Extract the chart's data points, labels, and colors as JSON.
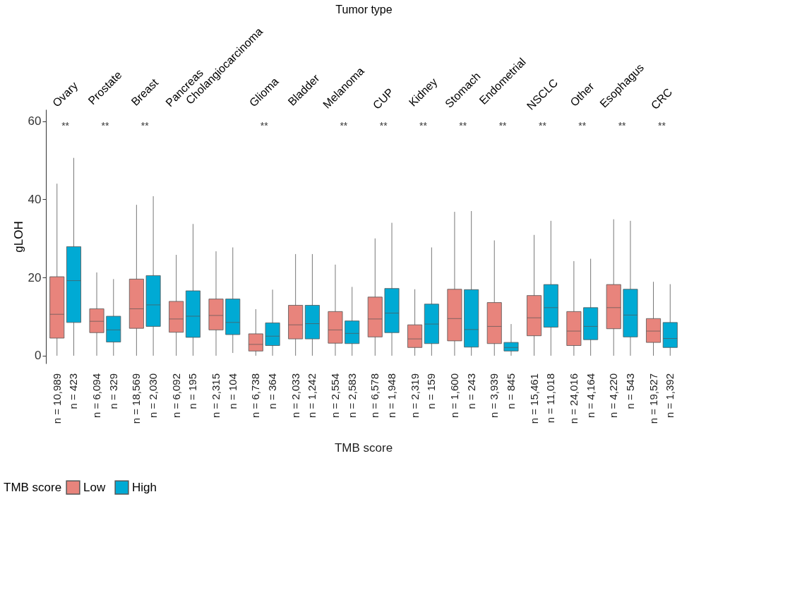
{
  "chart_data": {
    "type": "box",
    "x2label": "Tumor type",
    "ylabel": "gLOH",
    "legend_title": "TMB score",
    "legend": "bottom left",
    "grid": false,
    "categories": [
      "Ovary",
      "Prostate",
      "Breast",
      "Pancreas",
      "Cholangiocarcinoma",
      "Glioma",
      "Bladder",
      "Melanoma",
      "CUP",
      "Kidney",
      "Stomach",
      "Endometrial",
      "NSCLC",
      "Other",
      "Esophagus",
      "CRC"
    ],
    "ylim": [
      -2,
      63
    ],
    "yticks": [
      0,
      20,
      40,
      60
    ],
    "series": [
      {
        "name": "Low",
        "color": "#e8847c",
        "value_labels": [
          "n = 10,989",
          "n = 6,094",
          "n = 18,569",
          "n = 6,092",
          "n = 2,315",
          "n = 6,738",
          "n = 2,033",
          "n = 2,554",
          "n = 6,578",
          "n = 2,319",
          "n = 1,600",
          "n = 3,939",
          "n = 15,461",
          "n = 24,016",
          "n = 4,220",
          "n = 19,527"
        ],
        "boxes": [
          {
            "low": 0,
            "q1": 4.5,
            "median": 10.6,
            "q3": 20.2,
            "high": 44
          },
          {
            "low": 0,
            "q1": 5.9,
            "median": 8.8,
            "q3": 12.0,
            "high": 21.3
          },
          {
            "low": 0,
            "q1": 7.0,
            "median": 12.0,
            "q3": 19.6,
            "high": 38.6
          },
          {
            "low": 0,
            "q1": 6.0,
            "median": 9.4,
            "q3": 13.9,
            "high": 25.8
          },
          {
            "low": 0,
            "q1": 6.6,
            "median": 10.3,
            "q3": 14.5,
            "high": 26.7
          },
          {
            "low": 0,
            "q1": 1.2,
            "median": 2.9,
            "q3": 5.6,
            "high": 11.9
          },
          {
            "low": 0,
            "q1": 4.3,
            "median": 7.9,
            "q3": 12.9,
            "high": 26
          },
          {
            "low": 0,
            "q1": 3.2,
            "median": 6.6,
            "q3": 11.3,
            "high": 23.3
          },
          {
            "low": 0,
            "q1": 4.8,
            "median": 9.4,
            "q3": 15.0,
            "high": 30
          },
          {
            "low": 0,
            "q1": 2.1,
            "median": 4.3,
            "q3": 7.9,
            "high": 17.0
          },
          {
            "low": 0,
            "q1": 3.8,
            "median": 9.5,
            "q3": 17.0,
            "high": 36.8
          },
          {
            "low": 0,
            "q1": 3.1,
            "median": 7.5,
            "q3": 13.6,
            "high": 29.5
          },
          {
            "low": 0,
            "q1": 5.1,
            "median": 9.7,
            "q3": 15.4,
            "high": 30.9
          },
          {
            "low": 0,
            "q1": 2.6,
            "median": 6.3,
            "q3": 11.3,
            "high": 24.2
          },
          {
            "low": 0,
            "q1": 6.9,
            "median": 12.3,
            "q3": 18.2,
            "high": 34.9
          },
          {
            "low": 0,
            "q1": 3.4,
            "median": 6.3,
            "q3": 9.5,
            "high": 18.9
          }
        ]
      },
      {
        "name": "High",
        "color": "#00aad4",
        "value_labels": [
          "n = 423",
          "n = 329",
          "n = 2,030",
          "n = 195",
          "n = 104",
          "n = 364",
          "n = 1,242",
          "n = 2,583",
          "n = 1,948",
          "n = 159",
          "n = 243",
          "n = 845",
          "n = 11,018",
          "n = 4,164",
          "n = 543",
          "n = 1,392"
        ],
        "boxes": [
          {
            "low": 0,
            "q1": 8.5,
            "median": 19.2,
            "q3": 27.9,
            "high": 50.6
          },
          {
            "low": 0,
            "q1": 3.5,
            "median": 6.6,
            "q3": 10.1,
            "high": 19.6
          },
          {
            "low": 0,
            "q1": 7.5,
            "median": 13.0,
            "q3": 20.5,
            "high": 40.8
          },
          {
            "low": 0,
            "q1": 4.7,
            "median": 10.1,
            "q3": 16.6,
            "high": 33.7
          },
          {
            "low": 0.7,
            "q1": 5.4,
            "median": 8.5,
            "q3": 14.5,
            "high": 27.7
          },
          {
            "low": 0,
            "q1": 2.6,
            "median": 5.0,
            "q3": 8.4,
            "high": 16.9
          },
          {
            "low": 0,
            "q1": 4.3,
            "median": 8.2,
            "q3": 12.9,
            "high": 26
          },
          {
            "low": 0,
            "q1": 3.1,
            "median": 5.7,
            "q3": 8.9,
            "high": 17.6
          },
          {
            "low": 0,
            "q1": 5.9,
            "median": 10.9,
            "q3": 17.2,
            "high": 34
          },
          {
            "low": 0,
            "q1": 3.1,
            "median": 8.1,
            "q3": 13.2,
            "high": 27.7
          },
          {
            "low": 0,
            "q1": 2.2,
            "median": 6.7,
            "q3": 16.9,
            "high": 37
          },
          {
            "low": 0,
            "q1": 1.2,
            "median": 2.1,
            "q3": 3.4,
            "high": 8.1
          },
          {
            "low": 0,
            "q1": 7.3,
            "median": 12.3,
            "q3": 18.2,
            "high": 34.5
          },
          {
            "low": 0,
            "q1": 4.1,
            "median": 7.5,
            "q3": 12.3,
            "high": 24.8
          },
          {
            "low": 0,
            "q1": 4.8,
            "median": 10.4,
            "q3": 17.0,
            "high": 34.5
          },
          {
            "low": 0,
            "q1": 2.1,
            "median": 4.4,
            "q3": 8.5,
            "high": 18.3
          }
        ]
      }
    ],
    "annotations": [
      "**",
      "**",
      "**",
      null,
      null,
      "**",
      null,
      "**",
      "**",
      "**",
      "**",
      "**",
      "**",
      "**",
      "**",
      "**",
      "TMB score"
    ]
  }
}
